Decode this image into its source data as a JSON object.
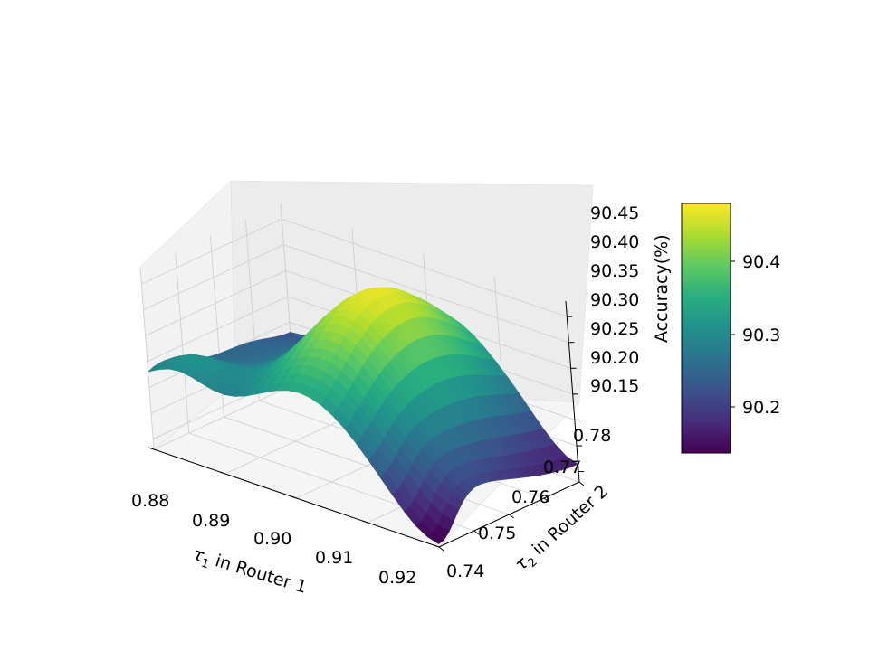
{
  "chart_data": {
    "type": "surface",
    "title": "",
    "x_axis": {
      "label_symbol": "τ",
      "label_sub": "1",
      "label_rest": " in Router 1",
      "ticks": [
        "0.88",
        "0.89",
        "0.90",
        "0.91",
        "0.92"
      ],
      "range": [
        0.88,
        0.92
      ]
    },
    "y_axis": {
      "label_symbol": "τ",
      "label_sub": "2",
      "label_rest": " in Router 2",
      "ticks": [
        "0.74",
        "0.75",
        "0.76",
        "0.77",
        "0.78"
      ],
      "range": [
        0.74,
        0.78
      ]
    },
    "z_axis": {
      "label": "Accuracy(%)",
      "ticks": [
        "90.15",
        "90.20",
        "90.25",
        "90.30",
        "90.35",
        "90.40",
        "90.45"
      ],
      "range": [
        90.13,
        90.48
      ]
    },
    "colorbar": {
      "colormap": "viridis",
      "ticks": [
        "90.2",
        "90.3",
        "90.4"
      ],
      "range": [
        90.14,
        90.48
      ]
    },
    "surface_samples": [
      {
        "x": 0.88,
        "y": 0.78,
        "z": 90.23
      },
      {
        "x": 0.88,
        "y": 0.74,
        "z": 90.36
      },
      {
        "x": 0.9,
        "y": 0.76,
        "z": 90.44
      },
      {
        "x": 0.91,
        "y": 0.775,
        "z": 90.47
      },
      {
        "x": 0.92,
        "y": 0.74,
        "z": 90.2
      },
      {
        "x": 0.92,
        "y": 0.78,
        "z": 90.14
      }
    ],
    "grid": true
  }
}
